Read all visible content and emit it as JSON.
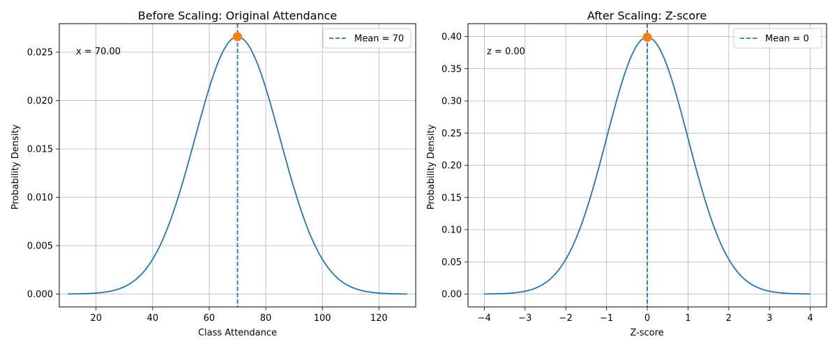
{
  "chart_data": [
    {
      "type": "line",
      "title": "Before Scaling: Original Attendance",
      "xlabel": "Class Attendance",
      "ylabel": "Probability Density",
      "xlim": [
        7,
        133
      ],
      "ylim": [
        -0.00133,
        0.02795
      ],
      "xticks": [
        20,
        40,
        60,
        80,
        100,
        120
      ],
      "yticks": [
        0.0,
        0.005,
        0.01,
        0.015,
        0.02,
        0.025
      ],
      "ytick_labels": [
        "0.000",
        "0.005",
        "0.010",
        "0.015",
        "0.020",
        "0.025"
      ],
      "grid": true,
      "legend_position": "upper right",
      "series": [
        {
          "type": "normal_pdf",
          "mean": 70,
          "std": 15,
          "x_range": [
            10,
            130
          ],
          "color": "#1f77b4"
        }
      ],
      "mean_line": {
        "x": 70,
        "label": "Mean = 70",
        "color": "#1f77b4"
      },
      "marker": {
        "x": 70,
        "y": 0.0266,
        "color": "#ff7f0e"
      },
      "annotation": "x = 70.00"
    },
    {
      "type": "line",
      "title": "After Scaling: Z-score",
      "xlabel": "Z-score",
      "ylabel": "Probability Density",
      "xlim": [
        -4.4,
        4.4
      ],
      "ylim": [
        -0.02,
        0.42
      ],
      "xticks": [
        -4,
        -3,
        -2,
        -1,
        0,
        1,
        2,
        3,
        4
      ],
      "ytick_labels": [
        "0.00",
        "0.05",
        "0.10",
        "0.15",
        "0.20",
        "0.25",
        "0.30",
        "0.35",
        "0.40"
      ],
      "yticks": [
        0.0,
        0.05,
        0.1,
        0.15,
        0.2,
        0.25,
        0.3,
        0.35,
        0.4
      ],
      "grid": true,
      "legend_position": "upper right",
      "series": [
        {
          "type": "normal_pdf",
          "mean": 0,
          "std": 1,
          "x_range": [
            -4,
            4
          ],
          "color": "#1f77b4"
        }
      ],
      "mean_line": {
        "x": 0,
        "label": "Mean = 0",
        "color": "#1f77b4"
      },
      "marker": {
        "x": 0,
        "y": 0.3989,
        "color": "#ff7f0e"
      },
      "annotation": "z = 0.00"
    }
  ]
}
